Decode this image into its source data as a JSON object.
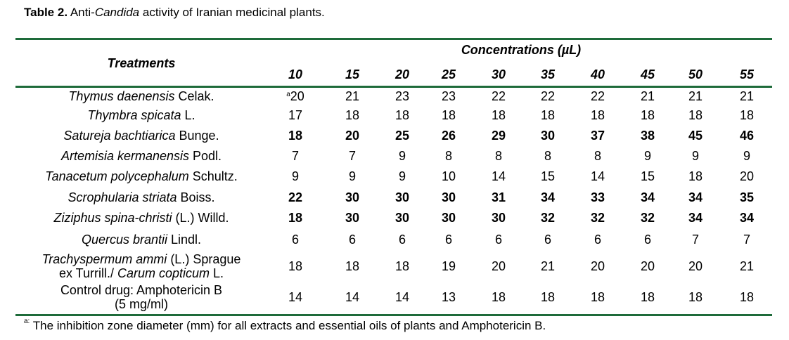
{
  "caption": {
    "label": "Table 2.",
    "pre": "Anti-",
    "italic": "Candida",
    "post": " activity of Iranian medicinal plants."
  },
  "headers": {
    "treatments": "Treatments",
    "concentrations": "Concentrations (µL)",
    "columns": [
      "10",
      "15",
      "20",
      "25",
      "30",
      "35",
      "40",
      "45",
      "50",
      "55"
    ]
  },
  "rows": [
    {
      "name_italic": "Thymus daenensis",
      "name_rest": " Celak.",
      "values": [
        "20",
        "21",
        "23",
        "23",
        "22",
        "22",
        "22",
        "21",
        "21",
        "21"
      ],
      "superscript": "a"
    },
    {
      "name_italic": "Thymbra spicata",
      "name_rest": " L.",
      "values": [
        "17",
        "18",
        "18",
        "18",
        "18",
        "18",
        "18",
        "18",
        "18",
        "18"
      ]
    },
    {
      "name_italic": "Satureja bachtiarica",
      "name_rest": " Bunge.",
      "values": [
        "18",
        "20",
        "25",
        "26",
        "29",
        "30",
        "37",
        "38",
        "45",
        "46"
      ],
      "bold": true
    },
    {
      "name_italic": "Artemisia kermanensis",
      "name_rest": " Podl.",
      "values": [
        "7",
        "7",
        "9",
        "8",
        "8",
        "8",
        "8",
        "9",
        "9",
        "9"
      ]
    },
    {
      "name_italic": "Tanacetum polycephalum",
      "name_rest": " Schultz.",
      "values": [
        "9",
        "9",
        "9",
        "10",
        "14",
        "15",
        "14",
        "15",
        "18",
        "20"
      ]
    },
    {
      "name_italic": "Scrophularia striata",
      "name_rest": " Boiss.",
      "values": [
        "22",
        "30",
        "30",
        "30",
        "31",
        "34",
        "33",
        "34",
        "34",
        "35"
      ],
      "bold": true
    },
    {
      "name_italic": "Ziziphus spina-christi",
      "name_rest": " (L.) Willd.",
      "values": [
        "18",
        "30",
        "30",
        "30",
        "30",
        "32",
        "32",
        "32",
        "34",
        "34"
      ],
      "bold": true
    },
    {
      "name_italic": "Quercus brantii",
      "name_rest": " Lindl.",
      "values": [
        "6",
        "6",
        "6",
        "6",
        "6",
        "6",
        "6",
        "6",
        "7",
        "7"
      ]
    },
    {
      "line1_italic": "Trachyspermum ammi",
      "line1_rest": " (L.) Sprague",
      "line2_pre": "ex Turrill./ ",
      "line2_italic": "Carum copticum",
      "line2_rest": " L.",
      "values": [
        "18",
        "18",
        "18",
        "19",
        "20",
        "21",
        "20",
        "20",
        "20",
        "21"
      ]
    },
    {
      "line1_plain": "Control drug: Amphotericin B",
      "line2_plain": "(5 mg/ml)",
      "values": [
        "14",
        "14",
        "14",
        "13",
        "18",
        "18",
        "18",
        "18",
        "18",
        "18"
      ]
    }
  ],
  "footnote": {
    "marker": "a:",
    "text": " The inhibition zone diameter (mm) for all extracts and essential oils of plants and Amphotericin B."
  }
}
